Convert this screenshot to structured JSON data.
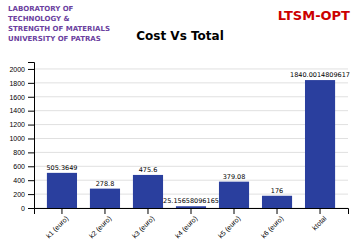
{
  "chart_data": {
    "type": "bar",
    "title": "Cost Vs Total",
    "annotations": [
      {
        "text": "LABORATORY OF",
        "color": "#6b3fa0"
      },
      {
        "text": "TECHNOLOGY &",
        "color": "#6b3fa0"
      },
      {
        "text": "STRENGTH OF MATERIALS",
        "color": "#6b3fa0"
      },
      {
        "text": "UNIVERSITY OF PATRAS",
        "color": "#6b3fa0"
      },
      {
        "text": "LTSM-OPT",
        "color": "#cc0000"
      }
    ],
    "categories": [
      "k1 (euro)",
      "k2 (euro)",
      "k3 (euro)",
      "k4 (euro)",
      "k5 (euro)",
      "k6 (euro)",
      "ktotal"
    ],
    "values": [
      505.3649,
      278.8,
      475.6,
      25.15658096165,
      379.08,
      176,
      1840.0014809617
    ],
    "color": "#2a3f9e",
    "ylim": [
      0,
      2100
    ],
    "yticks": [
      0,
      200,
      400,
      600,
      800,
      1000,
      1200,
      1400,
      1600,
      1800,
      2000
    ],
    "grid": true,
    "data_labels": true
  }
}
